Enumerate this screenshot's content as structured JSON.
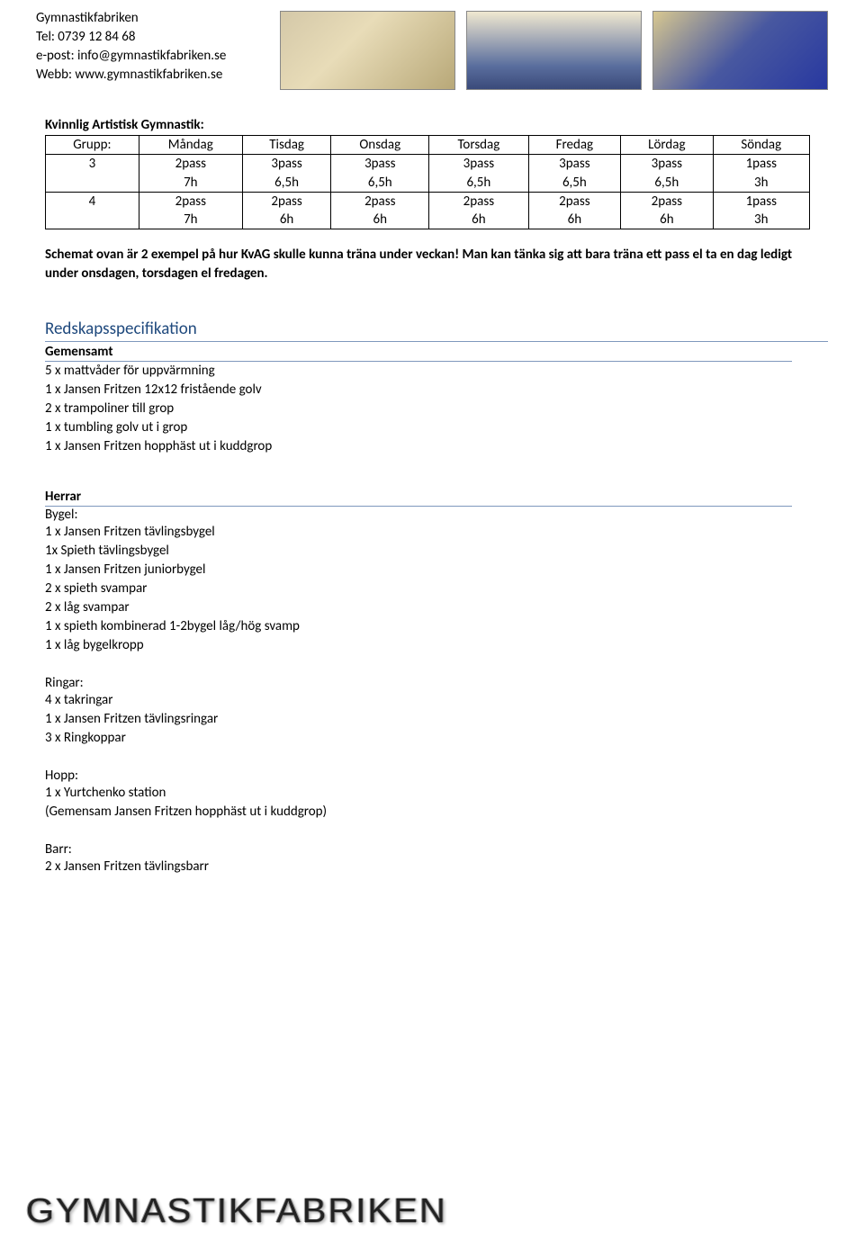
{
  "header": {
    "org": "Gymnastikfabriken",
    "tel": "Tel: 0739 12 84 68",
    "email": "e-post: info@gymnastikfabriken.se",
    "web": "Webb: www.gymnastikfabriken.se"
  },
  "schedule": {
    "title": "Kvinnlig Artistisk Gymnastik:",
    "columns": [
      "Grupp:",
      "Måndag",
      "Tisdag",
      "Onsdag",
      "Torsdag",
      "Fredag",
      "Lördag",
      "Söndag"
    ],
    "rows": [
      {
        "group": "3",
        "cells": [
          "2pass\n7h",
          "3pass\n6,5h",
          "3pass\n6,5h",
          "3pass\n6,5h",
          "3pass\n6,5h",
          "3pass\n6,5h",
          "1pass\n3h"
        ]
      },
      {
        "group": "4",
        "cells": [
          "2pass\n7h",
          "2pass\n6h",
          "2pass\n6h",
          "2pass\n6h",
          "2pass\n6h",
          "2pass\n6h",
          "1pass\n3h"
        ]
      }
    ],
    "note": "Schemat ovan är 2 exempel på hur KvAG skulle kunna träna under veckan! Man kan tänka sig att bara träna ett pass el ta en dag ledigt under onsdagen, torsdagen el fredagen."
  },
  "spec": {
    "heading": "Redskapsspecifikation",
    "gemensamt": {
      "label": "Gemensamt",
      "items": [
        "5 x mattvåder för uppvärmning",
        "1 x Jansen Fritzen 12x12 fristående golv",
        "2 x trampoliner till grop",
        "1 x tumbling golv ut i grop",
        "1 x Jansen Fritzen hopphäst ut i kuddgrop"
      ]
    },
    "herrar": {
      "label": "Herrar",
      "bygel": {
        "label": "Bygel:",
        "items": [
          "1 x Jansen Fritzen tävlingsbygel",
          "1x Spieth tävlingsbygel",
          "1 x Jansen Fritzen juniorbygel",
          "2 x spieth svampar",
          "2 x låg svampar",
          "1 x spieth kombinerad 1-2bygel låg/hög svamp",
          "1 x låg bygelkropp"
        ]
      },
      "ringar": {
        "label": "Ringar:",
        "items": [
          "4 x takringar",
          "1 x Jansen Fritzen tävlingsringar",
          "3 x Ringkoppar"
        ]
      },
      "hopp": {
        "label": "Hopp:",
        "items": [
          "1 x Yurtchenko station",
          "(Gemensam Jansen Fritzen hopphäst ut i kuddgrop)"
        ]
      },
      "barr": {
        "label": "Barr:",
        "items": [
          "2 x Jansen Fritzen tävlingsbarr"
        ]
      }
    }
  },
  "footer": {
    "logo": "GYMNASTIKFABRIKEN"
  }
}
